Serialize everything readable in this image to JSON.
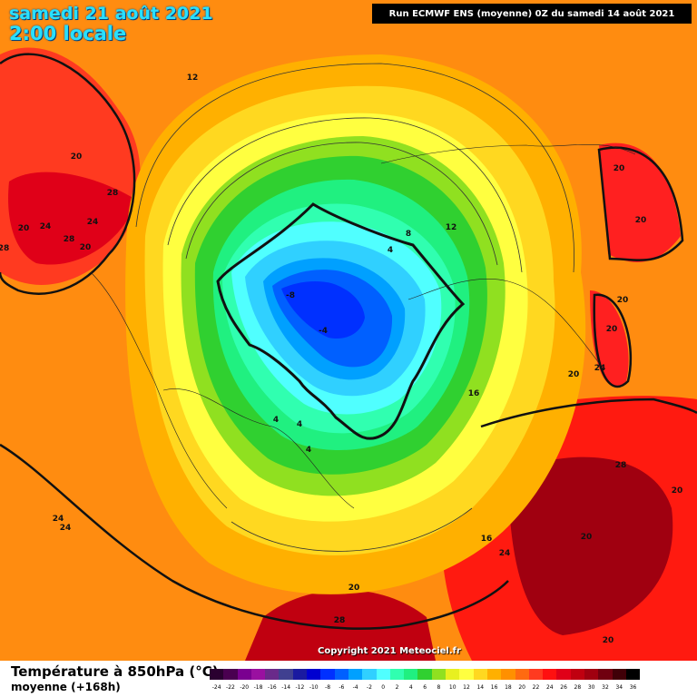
{
  "header": {
    "date_line": "samedi 21 août 2021",
    "time_line": "2:00 locale",
    "run_info": "Run ECMWF ENS (moyenne) 0Z du samedi 14 août 2021"
  },
  "copyright": "Copyright 2021 Meteociel.fr",
  "footer": {
    "title": "Température à 850hPa (°C)",
    "subtitle": "moyenne  (+168h)"
  },
  "scale": {
    "labels": [
      "-24",
      "-22",
      "-20",
      "-18",
      "-16",
      "-14",
      "-12",
      "-10",
      "-8",
      "-6",
      "-4",
      "-2",
      "0",
      "2",
      "4",
      "6",
      "8",
      "10",
      "12",
      "14",
      "16",
      "18",
      "20",
      "22",
      "24",
      "26",
      "28",
      "30",
      "32",
      "34",
      "36"
    ],
    "colors": [
      "#2a0030",
      "#4a0050",
      "#7a0090",
      "#9a10a0",
      "#6a2a8a",
      "#404090",
      "#1a1aa0",
      "#0000d0",
      "#0030ff",
      "#0060ff",
      "#00a0ff",
      "#30d0ff",
      "#50ffff",
      "#30ffb0",
      "#20f080",
      "#30d030",
      "#90e020",
      "#e8f020",
      "#ffff40",
      "#ffd820",
      "#ffb000",
      "#ff9000",
      "#ff6a10",
      "#ff3a20",
      "#ff1010",
      "#e00018",
      "#c00010",
      "#a00010",
      "#700010",
      "#400008",
      "#000000"
    ]
  },
  "map_labels": [
    {
      "text": "12"
    },
    {
      "text": "20"
    },
    {
      "text": "28"
    },
    {
      "text": "24"
    },
    {
      "text": "24"
    },
    {
      "text": "20"
    },
    {
      "text": "28"
    },
    {
      "text": "20"
    },
    {
      "text": "28"
    },
    {
      "text": "20"
    },
    {
      "text": "8"
    },
    {
      "text": "12"
    },
    {
      "text": "4"
    },
    {
      "text": "-8"
    },
    {
      "text": "-4"
    },
    {
      "text": "16"
    },
    {
      "text": "4"
    },
    {
      "text": "4"
    },
    {
      "text": "4"
    },
    {
      "text": "20"
    },
    {
      "text": "20"
    },
    {
      "text": "20"
    },
    {
      "text": "20"
    },
    {
      "text": "24"
    },
    {
      "text": "20"
    },
    {
      "text": "28"
    },
    {
      "text": "20"
    },
    {
      "text": "28"
    },
    {
      "text": "24"
    },
    {
      "text": "16"
    },
    {
      "text": "24"
    },
    {
      "text": "24"
    },
    {
      "text": "20"
    },
    {
      "text": "28"
    },
    {
      "text": "20"
    }
  ]
}
